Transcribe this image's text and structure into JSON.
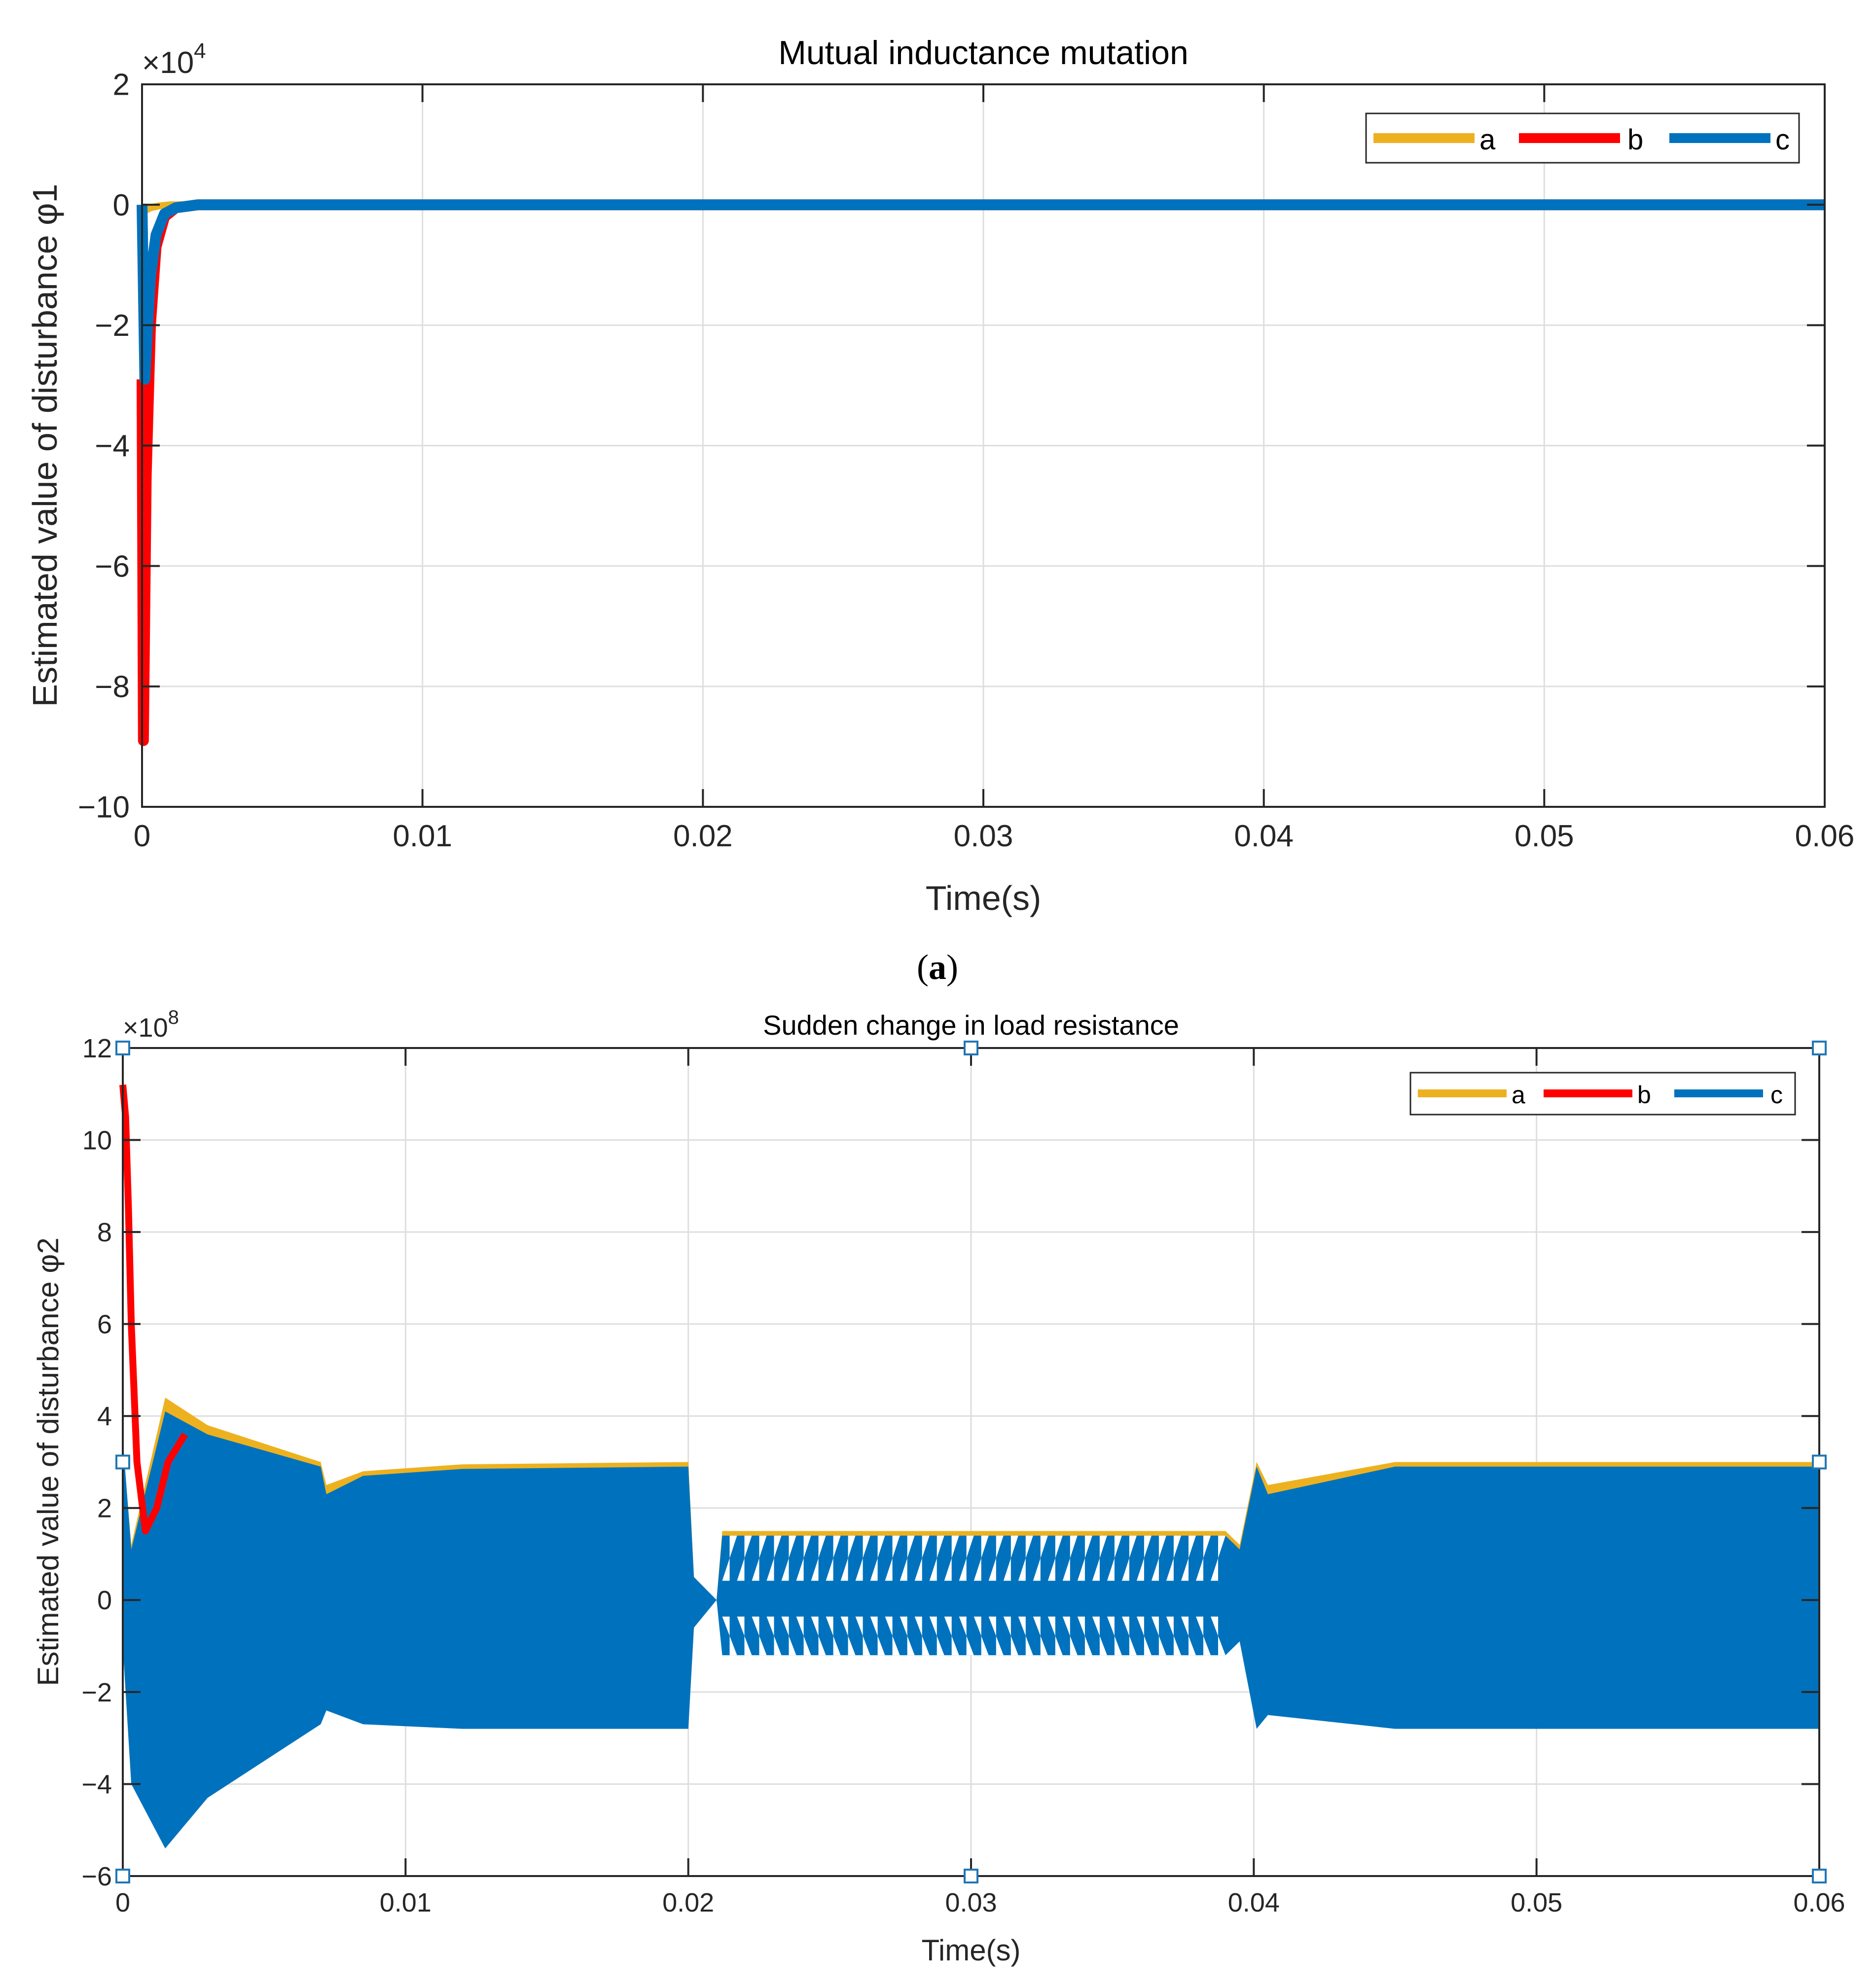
{
  "colors": {
    "a": "#edb120",
    "b": "#ff0000",
    "c": "#0072bd",
    "grid": "#dedede",
    "axis": "#262626"
  },
  "chart_data": [
    {
      "type": "line",
      "caption_open": "(",
      "caption_letter": "a",
      "caption_close": ")",
      "title": "Mutual inductance mutation",
      "xlabel": "Time(s)",
      "ylabel": "Estimated value of disturbance φ1",
      "exponent_base": "×10",
      "exponent_power": "4",
      "xlim": [
        0,
        0.06
      ],
      "ylim": [
        -10,
        2
      ],
      "xticks": [
        0,
        0.01,
        0.02,
        0.03,
        0.04,
        0.05,
        0.06
      ],
      "xtick_labels": [
        "0",
        "0.01",
        "0.02",
        "0.03",
        "0.04",
        "0.05",
        "0.06"
      ],
      "yticks": [
        2,
        0,
        -2,
        -4,
        -6,
        -8,
        -10
      ],
      "ytick_labels": [
        "2",
        "0",
        "−2",
        "−4",
        "−6",
        "−8",
        "−10"
      ],
      "grid": true,
      "legend_position": "top-right",
      "series": [
        {
          "name": "a",
          "x": [
            0,
            5e-05,
            0.0001,
            0.0003,
            0.0006,
            0.001,
            0.06
          ],
          "y": [
            0,
            -0.05,
            -0.1,
            -0.05,
            -0.02,
            0,
            0
          ]
        },
        {
          "name": "b",
          "x": [
            0,
            5e-05,
            0.00015,
            0.0003,
            0.0005,
            0.0008,
            0.0012,
            0.002,
            0.06
          ],
          "y": [
            -2.9,
            -8.9,
            -4.5,
            -2.0,
            -0.7,
            -0.2,
            -0.05,
            0,
            0
          ]
        },
        {
          "name": "c",
          "x": [
            0,
            0.0001,
            0.0002,
            0.0003,
            0.0005,
            0.0008,
            0.0012,
            0.002,
            0.06
          ],
          "y": [
            0,
            -2.9,
            -2.0,
            -1.2,
            -0.5,
            -0.15,
            -0.05,
            0,
            0
          ]
        }
      ]
    },
    {
      "type": "line",
      "title": "Sudden change in load resistance",
      "xlabel": "Time(s)",
      "ylabel": "Estimated value of disturbance φ2",
      "exponent_base": "×10",
      "exponent_power": "8",
      "xlim": [
        0,
        0.06
      ],
      "ylim": [
        -6,
        12
      ],
      "xticks": [
        0,
        0.01,
        0.02,
        0.03,
        0.04,
        0.05,
        0.06
      ],
      "xtick_labels": [
        "0",
        "0.01",
        "0.02",
        "0.03",
        "0.04",
        "0.05",
        "0.06"
      ],
      "yticks": [
        12,
        10,
        8,
        6,
        4,
        2,
        0,
        -2,
        -4,
        -6
      ],
      "ytick_labels": [
        "12",
        "10",
        "8",
        "6",
        "4",
        "2",
        "0",
        "−2",
        "−4",
        "−6"
      ],
      "grid": true,
      "legend_position": "top-right",
      "series": [
        {
          "name": "a",
          "envelope_x": [
            0,
            0.0003,
            0.0015,
            0.003,
            0.007,
            0.0072,
            0.0085,
            0.012,
            0.02,
            0.0202,
            0.021,
            0.0212,
            0.039,
            0.0395,
            0.0401,
            0.0405,
            0.045,
            0.06
          ],
          "upper": [
            3.4,
            1.2,
            4.4,
            3.8,
            3.0,
            2.5,
            2.8,
            2.95,
            3.0,
            0.5,
            0,
            1.5,
            1.5,
            1.2,
            3.0,
            2.5,
            3.0,
            3.0
          ],
          "lower": [
            -1.0,
            -4.0,
            -5.2,
            -4.2,
            -2.6,
            -2.3,
            -2.6,
            -2.7,
            -2.7,
            -0.5,
            0,
            -1.1,
            -1.1,
            -0.8,
            -2.7,
            -2.4,
            -2.7,
            -2.7
          ]
        },
        {
          "name": "b",
          "x": [
            0,
            0.0001,
            0.0002,
            0.0003,
            0.0005,
            0.0008,
            0.0012,
            0.0016,
            0.0022
          ],
          "y": [
            11.2,
            10.5,
            8.5,
            6.0,
            3.0,
            1.5,
            2.0,
            3.0,
            3.6
          ]
        },
        {
          "name": "c",
          "envelope_x": [
            0,
            0.0003,
            0.0015,
            0.003,
            0.007,
            0.0072,
            0.0085,
            0.012,
            0.02,
            0.0202,
            0.021,
            0.0212,
            0.039,
            0.0395,
            0.0401,
            0.0405,
            0.045,
            0.06
          ],
          "upper": [
            3.5,
            1.1,
            4.1,
            3.6,
            2.9,
            2.3,
            2.7,
            2.85,
            2.9,
            0.5,
            0,
            1.4,
            1.4,
            1.1,
            2.9,
            2.3,
            2.9,
            2.9
          ],
          "lower": [
            -1.0,
            -4.0,
            -5.4,
            -4.3,
            -2.7,
            -2.4,
            -2.7,
            -2.8,
            -2.8,
            -0.6,
            0,
            -1.2,
            -1.2,
            -0.9,
            -2.8,
            -2.5,
            -2.8,
            -2.8
          ]
        }
      ]
    }
  ]
}
